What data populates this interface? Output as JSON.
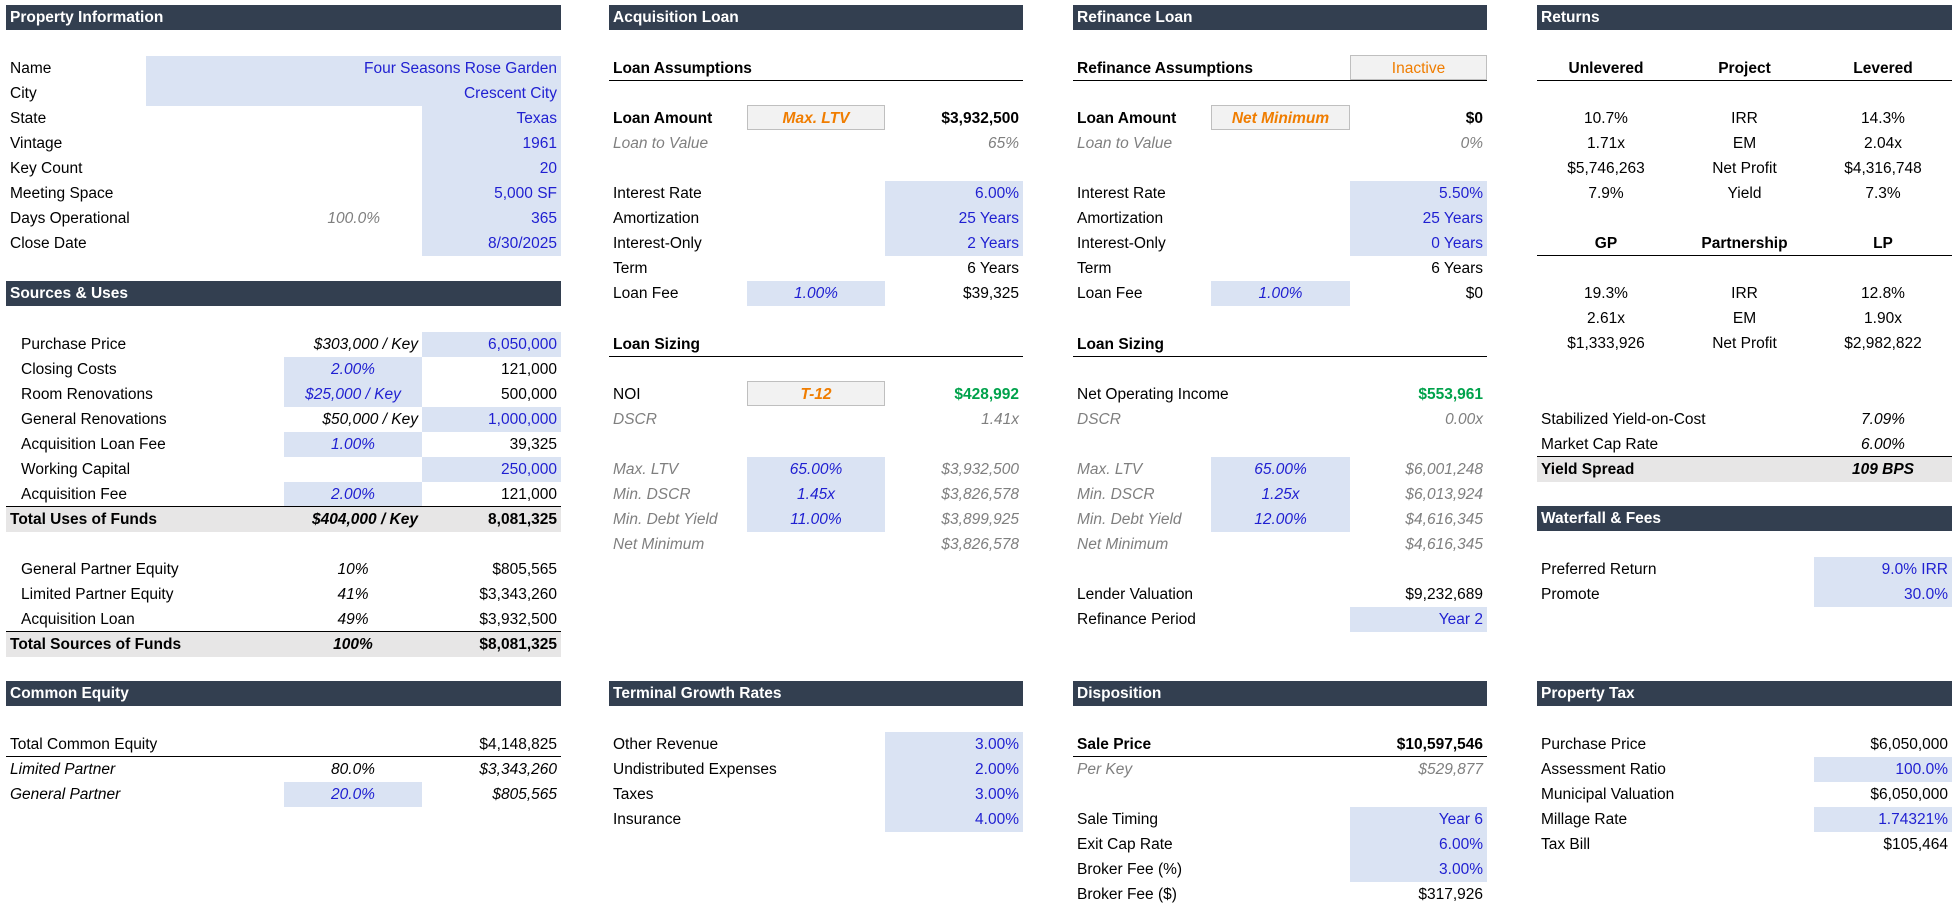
{
  "property_info": {
    "header": "Property Information",
    "rows": [
      {
        "label": "Name",
        "value": "Four Seasons Rose Garden"
      },
      {
        "label": "City",
        "value": "Crescent City"
      },
      {
        "label": "State",
        "value": "Texas"
      },
      {
        "label": "Vintage",
        "value": "1961"
      },
      {
        "label": "Key Count",
        "value": "20"
      },
      {
        "label": "Meeting Space",
        "value": "5,000 SF"
      },
      {
        "label": "Days Operational",
        "pct": "100.0%",
        "value": "365"
      },
      {
        "label": "Close Date",
        "value": "8/30/2025"
      }
    ]
  },
  "sources_uses": {
    "header": "Sources & Uses",
    "uses": [
      {
        "label": "Purchase Price",
        "mid": "$303,000 / Key",
        "value": "6,050,000"
      },
      {
        "label": "Closing Costs",
        "mid": "2.00%",
        "value": "121,000"
      },
      {
        "label": "Room Renovations",
        "mid": "$25,000 / Key",
        "value": "500,000"
      },
      {
        "label": "General Renovations",
        "mid": "$50,000 / Key",
        "value": "1,000,000"
      },
      {
        "label": "Acquisition Loan Fee",
        "mid": "1.00%",
        "value": "39,325"
      },
      {
        "label": "Working Capital",
        "mid": "",
        "value": "250,000"
      },
      {
        "label": "Acquisition Fee",
        "mid": "2.00%",
        "value": "121,000"
      }
    ],
    "total_uses": {
      "label": "Total Uses of Funds",
      "mid": "$404,000 / Key",
      "value": "8,081,325"
    },
    "sources": [
      {
        "label": "General Partner Equity",
        "mid": "10%",
        "value": "$805,565"
      },
      {
        "label": "Limited Partner Equity",
        "mid": "41%",
        "value": "$3,343,260"
      },
      {
        "label": "Acquisition Loan",
        "mid": "49%",
        "value": "$3,932,500"
      }
    ],
    "total_sources": {
      "label": "Total Sources of Funds",
      "mid": "100%",
      "value": "$8,081,325"
    }
  },
  "common_equity": {
    "header": "Common Equity",
    "total": {
      "label": "Total Common Equity",
      "value": "$4,148,825"
    },
    "lp": {
      "label": "Limited Partner",
      "pct": "80.0%",
      "value": "$3,343,260"
    },
    "gp": {
      "label": "General Partner",
      "pct": "20.0%",
      "value": "$805,565"
    }
  },
  "acq_loan": {
    "header": "Acquisition Loan",
    "assumptions_title": "Loan Assumptions",
    "loan_amount": {
      "label": "Loan Amount",
      "select": "Max. LTV",
      "value": "$3,932,500"
    },
    "ltv": {
      "label": "Loan to Value",
      "value": "65%"
    },
    "rows": [
      {
        "label": "Interest Rate",
        "value": "6.00%"
      },
      {
        "label": "Amortization",
        "value": "25 Years"
      },
      {
        "label": "Interest-Only",
        "value": "2 Years"
      }
    ],
    "term": {
      "label": "Term",
      "value": "6 Years"
    },
    "fee": {
      "label": "Loan Fee",
      "pct": "1.00%",
      "value": "$39,325"
    },
    "sizing_title": "Loan Sizing",
    "noi": {
      "label": "NOI",
      "select": "T-12",
      "value": "$428,992"
    },
    "dscr": {
      "label": "DSCR",
      "value": "1.41x"
    },
    "constraints": [
      {
        "label": "Max. LTV",
        "input": "65.00%",
        "value": "$3,932,500"
      },
      {
        "label": "Min. DSCR",
        "input": "1.45x",
        "value": "$3,826,578"
      },
      {
        "label": "Min. Debt Yield",
        "input": "11.00%",
        "value": "$3,899,925"
      }
    ],
    "net_min": {
      "label": "Net Minimum",
      "value": "$3,826,578"
    }
  },
  "terminal": {
    "header": "Terminal Growth Rates",
    "rows": [
      {
        "label": "Other Revenue",
        "value": "3.00%"
      },
      {
        "label": "Undistributed Expenses",
        "value": "2.00%"
      },
      {
        "label": "Taxes",
        "value": "3.00%"
      },
      {
        "label": "Insurance",
        "value": "4.00%"
      }
    ]
  },
  "refi_loan": {
    "header": "Refinance Loan",
    "assumptions_title": "Refinance Assumptions",
    "status": "Inactive",
    "loan_amount": {
      "label": "Loan Amount",
      "select": "Net Minimum",
      "value": "$0"
    },
    "ltv": {
      "label": "Loan to Value",
      "value": "0%"
    },
    "rows": [
      {
        "label": "Interest Rate",
        "value": "5.50%"
      },
      {
        "label": "Amortization",
        "value": "25 Years"
      },
      {
        "label": "Interest-Only",
        "value": "0 Years"
      }
    ],
    "term": {
      "label": "Term",
      "value": "6 Years"
    },
    "fee": {
      "label": "Loan Fee",
      "pct": "1.00%",
      "value": "$0"
    },
    "sizing_title": "Loan Sizing",
    "noi": {
      "label": "Net Operating Income",
      "value": "$553,961"
    },
    "dscr": {
      "label": "DSCR",
      "value": "0.00x"
    },
    "constraints": [
      {
        "label": "Max. LTV",
        "input": "65.00%",
        "value": "$6,001,248"
      },
      {
        "label": "Min. DSCR",
        "input": "1.25x",
        "value": "$6,013,924"
      },
      {
        "label": "Min. Debt Yield",
        "input": "12.00%",
        "value": "$4,616,345"
      }
    ],
    "net_min": {
      "label": "Net Minimum",
      "value": "$4,616,345"
    },
    "lender_valuation": {
      "label": "Lender Valuation",
      "value": "$9,232,689"
    },
    "refi_period": {
      "label": "Refinance Period",
      "value": "Year 2"
    }
  },
  "disposition": {
    "header": "Disposition",
    "sale_price": {
      "label": "Sale Price",
      "value": "$10,597,546"
    },
    "per_key": {
      "label": "Per Key",
      "value": "$529,877"
    },
    "rows": [
      {
        "label": "Sale Timing",
        "value": "Year 6"
      },
      {
        "label": "Exit Cap Rate",
        "value": "6.00%"
      },
      {
        "label": "Broker Fee (%)",
        "value": "3.00%"
      }
    ],
    "broker_fee_amt": {
      "label": "Broker Fee ($)",
      "value": "$317,926"
    }
  },
  "returns": {
    "header": "Returns",
    "cols1": [
      "Unlevered",
      "Project",
      "Levered"
    ],
    "rows1": [
      [
        "10.7%",
        "IRR",
        "14.3%"
      ],
      [
        "1.71x",
        "EM",
        "2.04x"
      ],
      [
        "$5,746,263",
        "Net Profit",
        "$4,316,748"
      ],
      [
        "7.9%",
        "Yield",
        "7.3%"
      ]
    ],
    "cols2": [
      "GP",
      "Partnership",
      "LP"
    ],
    "rows2": [
      [
        "19.3%",
        "IRR",
        "12.8%"
      ],
      [
        "2.61x",
        "EM",
        "1.90x"
      ],
      [
        "$1,333,926",
        "Net Profit",
        "$2,982,822"
      ]
    ],
    "yoc": {
      "label": "Stabilized Yield-on-Cost",
      "value": "7.09%"
    },
    "mcr": {
      "label": "Market Cap Rate",
      "value": "6.00%"
    },
    "spread": {
      "label": "Yield Spread",
      "value": "109 BPS"
    }
  },
  "waterfall": {
    "header": "Waterfall & Fees",
    "pref": {
      "label": "Preferred Return",
      "value": "9.0% IRR"
    },
    "promote": {
      "label": "Promote",
      "value": "30.0%"
    }
  },
  "property_tax": {
    "header": "Property Tax",
    "purchase": {
      "label": "Purchase Price",
      "value": "$6,050,000"
    },
    "ratio": {
      "label": "Assessment Ratio",
      "value": "100.0%"
    },
    "muni": {
      "label": "Municipal Valuation",
      "value": "$6,050,000"
    },
    "millage": {
      "label": "Millage Rate",
      "value": "1.74321%"
    },
    "bill": {
      "label": "Tax Bill",
      "value": "$105,464"
    }
  }
}
